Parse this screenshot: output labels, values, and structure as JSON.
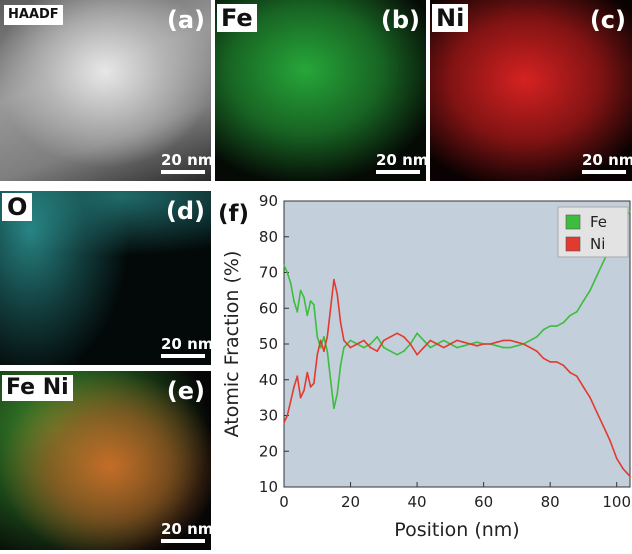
{
  "panels": {
    "a": {
      "letter": "(a)",
      "label": "HAADF",
      "scale": "20 nm"
    },
    "b": {
      "letter": "(b)",
      "label": "Fe",
      "scale": "20 nm"
    },
    "c": {
      "letter": "(c)",
      "label": "Ni",
      "scale": "20 nm"
    },
    "d": {
      "letter": "(d)",
      "label": "O",
      "scale": "20 nm"
    },
    "e": {
      "letter": "(e)",
      "label": "Fe Ni",
      "scale": "20 nm"
    },
    "f": {
      "letter": "(f)"
    }
  },
  "colors": {
    "fe": "#3dbd3d",
    "ni": "#e23a2e",
    "o": "#2fa7a4",
    "plot_bg": "#c3cfdb",
    "haadf": "#cfcfcf"
  },
  "chart_data": {
    "type": "line",
    "title": "",
    "xlabel": "Position (nm)",
    "ylabel": "Atomic Fraction (%)",
    "xlim": [
      0,
      104
    ],
    "ylim": [
      10,
      90
    ],
    "xticks": [
      0,
      20,
      40,
      60,
      80,
      100
    ],
    "yticks": [
      10,
      20,
      30,
      40,
      50,
      60,
      70,
      80,
      90
    ],
    "legend_position": "top-right",
    "grid": false,
    "series": [
      {
        "name": "Fe",
        "color": "#3dbd3d",
        "x": [
          0,
          1,
          2,
          3,
          4,
          5,
          6,
          7,
          8,
          9,
          10,
          11,
          12,
          13,
          14,
          15,
          16,
          17,
          18,
          19,
          20,
          22,
          24,
          26,
          28,
          30,
          32,
          34,
          36,
          38,
          40,
          42,
          44,
          46,
          48,
          50,
          52,
          54,
          56,
          58,
          60,
          62,
          64,
          66,
          68,
          70,
          72,
          74,
          76,
          78,
          80,
          82,
          84,
          86,
          88,
          90,
          92,
          94,
          96,
          98,
          100,
          102,
          104
        ],
        "y": [
          72,
          70,
          67,
          62,
          59,
          65,
          63,
          58,
          62,
          61,
          52,
          49,
          52,
          48,
          40,
          32,
          36,
          44,
          49,
          50,
          51,
          50,
          49,
          50,
          52,
          49,
          48,
          47,
          48,
          50,
          53,
          51,
          49,
          50,
          51,
          50,
          49,
          49.5,
          50,
          50.5,
          50,
          50,
          49.5,
          49,
          49,
          49.5,
          50,
          51,
          52,
          54,
          55,
          55,
          56,
          58,
          59,
          62,
          65,
          69,
          73,
          77,
          82,
          85,
          87
        ]
      },
      {
        "name": "Ni",
        "color": "#e23a2e",
        "x": [
          0,
          1,
          2,
          3,
          4,
          5,
          6,
          7,
          8,
          9,
          10,
          11,
          12,
          13,
          14,
          15,
          16,
          17,
          18,
          19,
          20,
          22,
          24,
          26,
          28,
          30,
          32,
          34,
          36,
          38,
          40,
          42,
          44,
          46,
          48,
          50,
          52,
          54,
          56,
          58,
          60,
          62,
          64,
          66,
          68,
          70,
          72,
          74,
          76,
          78,
          80,
          82,
          84,
          86,
          88,
          90,
          92,
          94,
          96,
          98,
          100,
          102,
          104
        ],
        "y": [
          28,
          30,
          34,
          38,
          41,
          35,
          37,
          42,
          38,
          39,
          47,
          51,
          48,
          52,
          60,
          68,
          64,
          56,
          51,
          50,
          49,
          50,
          51,
          49,
          48,
          51,
          52,
          53,
          52,
          50,
          47,
          49,
          51,
          50,
          49,
          50,
          51,
          50.5,
          50,
          49.5,
          50,
          50,
          50.5,
          51,
          51,
          50.5,
          50,
          49,
          48,
          46,
          45,
          45,
          44,
          42,
          41,
          38,
          35,
          31,
          27,
          23,
          18,
          15,
          13
        ]
      }
    ]
  }
}
